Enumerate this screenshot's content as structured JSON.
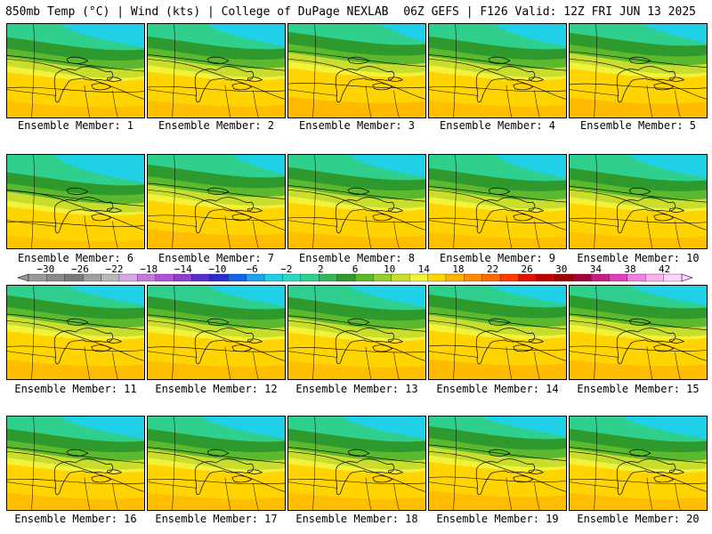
{
  "header": {
    "title": "850mb Temp (°C) | Wind (kts) | College of DuPage NEXLAB",
    "run_info": "06Z GEFS | F126 Valid: 12Z FRI JUN 13 2025"
  },
  "panels": [
    {
      "label": "Ensemble Member: 1",
      "warmth": 0.55,
      "cool_corner": 0.8
    },
    {
      "label": "Ensemble Member: 2",
      "warmth": 0.6,
      "cool_corner": 0.7
    },
    {
      "label": "Ensemble Member: 3",
      "warmth": 0.85,
      "cool_corner": 0.2
    },
    {
      "label": "Ensemble Member: 4",
      "warmth": 0.6,
      "cool_corner": 0.6
    },
    {
      "label": "Ensemble Member: 5",
      "warmth": 0.8,
      "cool_corner": 0.5
    },
    {
      "label": "Ensemble Member: 6",
      "warmth": 0.3,
      "cool_corner": 0.9
    },
    {
      "label": "Ensemble Member: 7",
      "warmth": 0.75,
      "cool_corner": 0.3
    },
    {
      "label": "Ensemble Member: 8",
      "warmth": 0.6,
      "cool_corner": 0.7
    },
    {
      "label": "Ensemble Member: 9",
      "warmth": 0.55,
      "cool_corner": 0.6
    },
    {
      "label": "Ensemble Member: 10",
      "warmth": 0.55,
      "cool_corner": 0.7
    },
    {
      "label": "Ensemble Member: 11",
      "warmth": 0.75,
      "cool_corner": 0.7
    },
    {
      "label": "Ensemble Member: 12",
      "warmth": 0.7,
      "cool_corner": 0.7
    },
    {
      "label": "Ensemble Member: 13",
      "warmth": 0.65,
      "cool_corner": 0.7
    },
    {
      "label": "Ensemble Member: 14",
      "warmth": 0.8,
      "cool_corner": 0.7
    },
    {
      "label": "Ensemble Member: 15",
      "warmth": 0.75,
      "cool_corner": 0.7
    },
    {
      "label": "Ensemble Member: 16",
      "warmth": 0.6,
      "cool_corner": 0.8
    },
    {
      "label": "Ensemble Member: 17",
      "warmth": 0.6,
      "cool_corner": 0.8
    },
    {
      "label": "Ensemble Member: 18",
      "warmth": 0.6,
      "cool_corner": 0.8
    },
    {
      "label": "Ensemble Member: 19",
      "warmth": 0.75,
      "cool_corner": 0.8
    },
    {
      "label": "Ensemble Member: 20",
      "warmth": 0.6,
      "cool_corner": 0.8
    }
  ],
  "colorbar": {
    "unit": "°C",
    "tick_values": [
      "-30",
      "-26",
      "-22",
      "-18",
      "-14",
      "-10",
      "-6",
      "-2",
      "2",
      "6",
      "10",
      "14",
      "18",
      "22",
      "26",
      "30",
      "34",
      "38",
      "42"
    ],
    "colors": [
      "#9a9a9a",
      "#8a8a8a",
      "#7a7a7a",
      "#9f9f9f",
      "#b8b8b8",
      "#d7a6e8",
      "#c678de",
      "#b352d6",
      "#8f3fd0",
      "#5a2ec9",
      "#2b2bd0",
      "#1565e8",
      "#1aa3f0",
      "#20d0e6",
      "#2fd8c0",
      "#2fcf8e",
      "#32b85a",
      "#2e9a2e",
      "#5cb82c",
      "#98cc2a",
      "#c9de2c",
      "#f2f23a",
      "#ffd700",
      "#ffb300",
      "#ff8c00",
      "#ff6a00",
      "#ff3b00",
      "#e81000",
      "#c00000",
      "#a00000",
      "#a0003c",
      "#c81e82",
      "#e040c0",
      "#f080e0",
      "#ffb0f0",
      "#ffd4ff"
    ]
  }
}
